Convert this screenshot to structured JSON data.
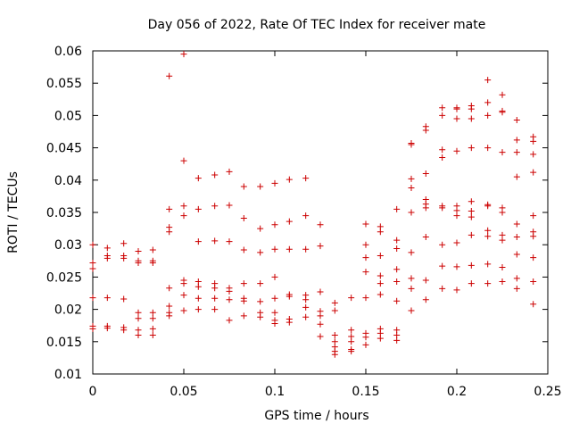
{
  "chart_data": {
    "type": "scatter",
    "title": "Day 056 of 2022, Rate Of TEC Index for receiver mate",
    "xlabel": "GPS time / hours",
    "ylabel": "ROTI / TECUs",
    "xlim": [
      0,
      0.25
    ],
    "ylim": [
      0.01,
      0.06
    ],
    "x_ticks": [
      0,
      0.05,
      0.1,
      0.15,
      0.2,
      0.25
    ],
    "x_tick_labels": [
      "0",
      "0.05",
      "0.1",
      "0.15",
      "0.2",
      "0.25"
    ],
    "y_ticks": [
      0.01,
      0.015,
      0.02,
      0.025,
      0.03,
      0.035,
      0.04,
      0.045,
      0.05,
      0.055,
      0.06
    ],
    "y_tick_labels": [
      "0.01",
      "0.015",
      "0.02",
      "0.025",
      "0.03",
      "0.035",
      "0.04",
      "0.045",
      "0.05",
      "0.055",
      "0.06"
    ],
    "marker": "+",
    "color": "#cc0000",
    "grid": false,
    "series": [
      {
        "name": "ROTI",
        "points": [
          [
            0.0,
            0.03
          ],
          [
            0.0,
            0.0272
          ],
          [
            0.0,
            0.0263
          ],
          [
            0.0,
            0.0218
          ],
          [
            0.0,
            0.0174
          ],
          [
            0.0,
            0.017
          ],
          [
            0.008,
            0.0295
          ],
          [
            0.008,
            0.0283
          ],
          [
            0.008,
            0.0279
          ],
          [
            0.008,
            0.0218
          ],
          [
            0.008,
            0.0174
          ],
          [
            0.008,
            0.0171
          ],
          [
            0.017,
            0.0302
          ],
          [
            0.017,
            0.0283
          ],
          [
            0.017,
            0.0279
          ],
          [
            0.017,
            0.0216
          ],
          [
            0.017,
            0.0172
          ],
          [
            0.017,
            0.0168
          ],
          [
            0.025,
            0.029
          ],
          [
            0.025,
            0.0275
          ],
          [
            0.025,
            0.0272
          ],
          [
            0.025,
            0.0195
          ],
          [
            0.025,
            0.0186
          ],
          [
            0.025,
            0.0168
          ],
          [
            0.025,
            0.016
          ],
          [
            0.033,
            0.0292
          ],
          [
            0.033,
            0.0275
          ],
          [
            0.033,
            0.0272
          ],
          [
            0.033,
            0.0195
          ],
          [
            0.033,
            0.0186
          ],
          [
            0.033,
            0.017
          ],
          [
            0.033,
            0.016
          ],
          [
            0.042,
            0.0561
          ],
          [
            0.042,
            0.0355
          ],
          [
            0.042,
            0.0327
          ],
          [
            0.042,
            0.032
          ],
          [
            0.042,
            0.0233
          ],
          [
            0.042,
            0.0205
          ],
          [
            0.042,
            0.0195
          ],
          [
            0.042,
            0.019
          ],
          [
            0.05,
            0.0595
          ],
          [
            0.05,
            0.043
          ],
          [
            0.05,
            0.036
          ],
          [
            0.05,
            0.0345
          ],
          [
            0.05,
            0.0245
          ],
          [
            0.05,
            0.024
          ],
          [
            0.05,
            0.0222
          ],
          [
            0.05,
            0.0198
          ],
          [
            0.058,
            0.0403
          ],
          [
            0.058,
            0.0355
          ],
          [
            0.058,
            0.0305
          ],
          [
            0.058,
            0.0243
          ],
          [
            0.058,
            0.0235
          ],
          [
            0.058,
            0.0217
          ],
          [
            0.058,
            0.02
          ],
          [
            0.067,
            0.0408
          ],
          [
            0.067,
            0.036
          ],
          [
            0.067,
            0.0306
          ],
          [
            0.067,
            0.024
          ],
          [
            0.067,
            0.0233
          ],
          [
            0.067,
            0.0217
          ],
          [
            0.067,
            0.02
          ],
          [
            0.075,
            0.0413
          ],
          [
            0.075,
            0.0361
          ],
          [
            0.075,
            0.0305
          ],
          [
            0.075,
            0.0233
          ],
          [
            0.075,
            0.0228
          ],
          [
            0.075,
            0.0215
          ],
          [
            0.075,
            0.0183
          ],
          [
            0.083,
            0.039
          ],
          [
            0.083,
            0.0341
          ],
          [
            0.083,
            0.0292
          ],
          [
            0.083,
            0.024
          ],
          [
            0.083,
            0.0217
          ],
          [
            0.083,
            0.0213
          ],
          [
            0.083,
            0.019
          ],
          [
            0.092,
            0.039
          ],
          [
            0.092,
            0.0325
          ],
          [
            0.092,
            0.0288
          ],
          [
            0.092,
            0.024
          ],
          [
            0.092,
            0.0212
          ],
          [
            0.092,
            0.0195
          ],
          [
            0.092,
            0.0188
          ],
          [
            0.1,
            0.0395
          ],
          [
            0.1,
            0.0331
          ],
          [
            0.1,
            0.0293
          ],
          [
            0.1,
            0.025
          ],
          [
            0.1,
            0.0217
          ],
          [
            0.1,
            0.0195
          ],
          [
            0.1,
            0.0183
          ],
          [
            0.1,
            0.0178
          ],
          [
            0.108,
            0.0401
          ],
          [
            0.108,
            0.0336
          ],
          [
            0.108,
            0.0293
          ],
          [
            0.108,
            0.0223
          ],
          [
            0.108,
            0.022
          ],
          [
            0.108,
            0.0185
          ],
          [
            0.108,
            0.018
          ],
          [
            0.117,
            0.0403
          ],
          [
            0.117,
            0.0345
          ],
          [
            0.117,
            0.0293
          ],
          [
            0.117,
            0.0222
          ],
          [
            0.117,
            0.0215
          ],
          [
            0.117,
            0.0203
          ],
          [
            0.117,
            0.0188
          ],
          [
            0.125,
            0.0331
          ],
          [
            0.125,
            0.0298
          ],
          [
            0.125,
            0.0227
          ],
          [
            0.125,
            0.0197
          ],
          [
            0.125,
            0.019
          ],
          [
            0.125,
            0.0177
          ],
          [
            0.125,
            0.0158
          ],
          [
            0.133,
            0.021
          ],
          [
            0.133,
            0.0198
          ],
          [
            0.133,
            0.016
          ],
          [
            0.133,
            0.015
          ],
          [
            0.133,
            0.0142
          ],
          [
            0.133,
            0.0135
          ],
          [
            0.133,
            0.013
          ],
          [
            0.142,
            0.0218
          ],
          [
            0.142,
            0.0168
          ],
          [
            0.142,
            0.0158
          ],
          [
            0.142,
            0.015
          ],
          [
            0.142,
            0.0138
          ],
          [
            0.142,
            0.0135
          ],
          [
            0.15,
            0.0332
          ],
          [
            0.15,
            0.03
          ],
          [
            0.15,
            0.028
          ],
          [
            0.15,
            0.0258
          ],
          [
            0.15,
            0.0218
          ],
          [
            0.15,
            0.0163
          ],
          [
            0.15,
            0.0157
          ],
          [
            0.15,
            0.0145
          ],
          [
            0.158,
            0.0328
          ],
          [
            0.158,
            0.032
          ],
          [
            0.158,
            0.0283
          ],
          [
            0.158,
            0.0252
          ],
          [
            0.158,
            0.024
          ],
          [
            0.158,
            0.0223
          ],
          [
            0.158,
            0.017
          ],
          [
            0.158,
            0.0163
          ],
          [
            0.158,
            0.0155
          ],
          [
            0.167,
            0.0355
          ],
          [
            0.167,
            0.0307
          ],
          [
            0.167,
            0.0294
          ],
          [
            0.167,
            0.0262
          ],
          [
            0.167,
            0.0243
          ],
          [
            0.167,
            0.0213
          ],
          [
            0.167,
            0.0168
          ],
          [
            0.167,
            0.016
          ],
          [
            0.167,
            0.0152
          ],
          [
            0.175,
            0.0457
          ],
          [
            0.175,
            0.0455
          ],
          [
            0.175,
            0.0402
          ],
          [
            0.175,
            0.0388
          ],
          [
            0.175,
            0.035
          ],
          [
            0.175,
            0.0288
          ],
          [
            0.175,
            0.0248
          ],
          [
            0.175,
            0.0232
          ],
          [
            0.175,
            0.0198
          ],
          [
            0.183,
            0.0483
          ],
          [
            0.183,
            0.0477
          ],
          [
            0.183,
            0.041
          ],
          [
            0.183,
            0.037
          ],
          [
            0.183,
            0.0363
          ],
          [
            0.183,
            0.0357
          ],
          [
            0.183,
            0.0312
          ],
          [
            0.183,
            0.0245
          ],
          [
            0.183,
            0.0215
          ],
          [
            0.192,
            0.0512
          ],
          [
            0.192,
            0.05
          ],
          [
            0.192,
            0.0447
          ],
          [
            0.192,
            0.0435
          ],
          [
            0.192,
            0.036
          ],
          [
            0.192,
            0.0357
          ],
          [
            0.192,
            0.03
          ],
          [
            0.192,
            0.0267
          ],
          [
            0.192,
            0.0232
          ],
          [
            0.2,
            0.0512
          ],
          [
            0.2,
            0.051
          ],
          [
            0.2,
            0.0495
          ],
          [
            0.2,
            0.0445
          ],
          [
            0.2,
            0.036
          ],
          [
            0.2,
            0.0353
          ],
          [
            0.2,
            0.0345
          ],
          [
            0.2,
            0.0303
          ],
          [
            0.2,
            0.0266
          ],
          [
            0.2,
            0.023
          ],
          [
            0.208,
            0.0515
          ],
          [
            0.208,
            0.051
          ],
          [
            0.208,
            0.0495
          ],
          [
            0.208,
            0.045
          ],
          [
            0.208,
            0.0367
          ],
          [
            0.208,
            0.0352
          ],
          [
            0.208,
            0.0343
          ],
          [
            0.208,
            0.0315
          ],
          [
            0.208,
            0.0268
          ],
          [
            0.208,
            0.024
          ],
          [
            0.217,
            0.0555
          ],
          [
            0.217,
            0.052
          ],
          [
            0.217,
            0.05
          ],
          [
            0.217,
            0.045
          ],
          [
            0.217,
            0.0362
          ],
          [
            0.217,
            0.036
          ],
          [
            0.217,
            0.0322
          ],
          [
            0.217,
            0.0313
          ],
          [
            0.217,
            0.027
          ],
          [
            0.217,
            0.024
          ],
          [
            0.225,
            0.0532
          ],
          [
            0.225,
            0.0507
          ],
          [
            0.225,
            0.0505
          ],
          [
            0.225,
            0.0443
          ],
          [
            0.225,
            0.0357
          ],
          [
            0.225,
            0.035
          ],
          [
            0.225,
            0.0315
          ],
          [
            0.225,
            0.0307
          ],
          [
            0.225,
            0.0265
          ],
          [
            0.225,
            0.0243
          ],
          [
            0.233,
            0.0493
          ],
          [
            0.233,
            0.0462
          ],
          [
            0.233,
            0.0443
          ],
          [
            0.233,
            0.0405
          ],
          [
            0.233,
            0.0332
          ],
          [
            0.233,
            0.0312
          ],
          [
            0.233,
            0.0285
          ],
          [
            0.233,
            0.0248
          ],
          [
            0.233,
            0.0232
          ],
          [
            0.242,
            0.0467
          ],
          [
            0.242,
            0.046
          ],
          [
            0.242,
            0.044
          ],
          [
            0.242,
            0.0412
          ],
          [
            0.242,
            0.0345
          ],
          [
            0.242,
            0.032
          ],
          [
            0.242,
            0.0313
          ],
          [
            0.242,
            0.028
          ],
          [
            0.242,
            0.0243
          ],
          [
            0.242,
            0.0208
          ]
        ]
      }
    ]
  }
}
